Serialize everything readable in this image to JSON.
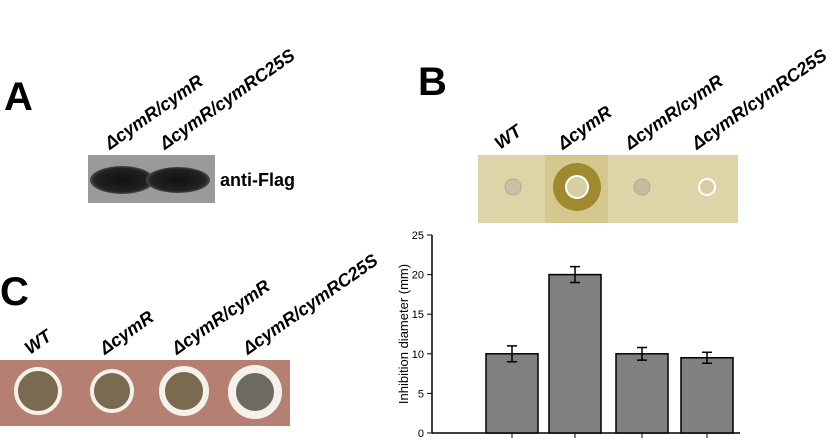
{
  "panels": {
    "a": {
      "label": "A",
      "lanes": [
        "ΔcymR/cymR",
        "ΔcymR/cymRC25S"
      ],
      "antibody": "anti-Flag"
    },
    "b": {
      "label": "B",
      "lanes": [
        "WT",
        "ΔcymR",
        "ΔcymR/cymR",
        "ΔcymR/cymRC25S"
      ]
    },
    "c": {
      "label": "C",
      "lanes": [
        "WT",
        "ΔcymR",
        "ΔcymR/cymR",
        "ΔcymR/cymRC25S"
      ]
    }
  },
  "chart_data": {
    "type": "bar",
    "y_label": "Inhibition diameter (mm)",
    "categories": [
      null,
      null,
      null,
      null
    ],
    "values": [
      10,
      20,
      10,
      9.5
    ],
    "errors": [
      1,
      1,
      0.8,
      0.7
    ],
    "color": "#808080",
    "ylim": [
      0,
      25
    ],
    "yticks": [
      0,
      5,
      10,
      15,
      20,
      25
    ],
    "grid": false
  }
}
